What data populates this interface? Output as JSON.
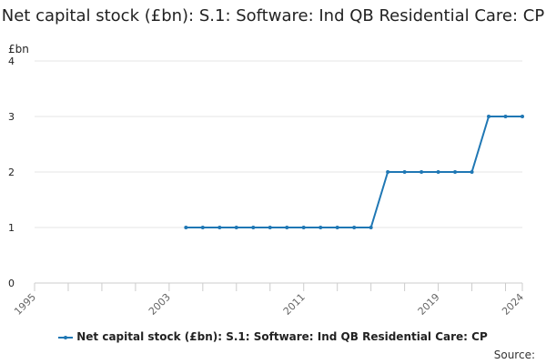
{
  "chart_data": {
    "type": "line",
    "title": "Net capital stock (£bn): S.1: Software: Ind QB Residential Care: CP",
    "xlabel": "",
    "ylabel": "£bn",
    "x": [
      2004,
      2005,
      2006,
      2007,
      2008,
      2009,
      2010,
      2011,
      2012,
      2013,
      2014,
      2015,
      2016,
      2017,
      2018,
      2019,
      2020,
      2021,
      2022,
      2023,
      2024
    ],
    "series": [
      {
        "name": "Net capital stock (£bn): S.1: Software: Ind QB Residential Care: CP",
        "color": "#1f77b4",
        "values": [
          1,
          1,
          1,
          1,
          1,
          1,
          1,
          1,
          1,
          1,
          1,
          1,
          2,
          2,
          2,
          2,
          2,
          2,
          3,
          3,
          3
        ]
      }
    ],
    "xlim": [
      1995,
      2024
    ],
    "ylim": [
      0,
      4
    ],
    "x_ticks": [
      "1995",
      "2003",
      "2011",
      "2019",
      "2024"
    ],
    "y_ticks": [
      "0",
      "1",
      "2",
      "3",
      "4"
    ],
    "grid": "horizontal",
    "legend_position": "bottom"
  },
  "footer": {
    "source_label": "Source:"
  }
}
